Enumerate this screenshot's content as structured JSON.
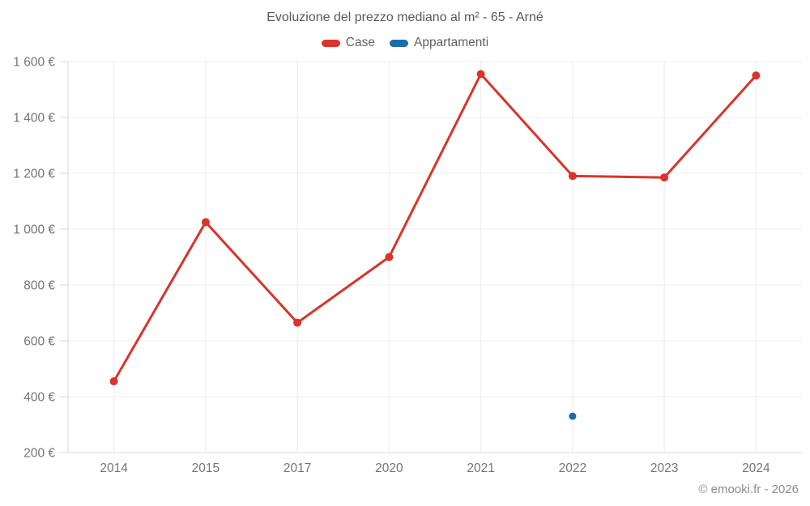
{
  "title": "Evoluzione del prezzo mediano al m² - 65 - Arné",
  "footer": "© emooki.fr - 2026",
  "legend": [
    {
      "label": "Case",
      "color": "#d9342b"
    },
    {
      "label": "Appartamenti",
      "color": "#1c6ca8"
    }
  ],
  "colors": {
    "case_red": "#d9342b",
    "appartamenti_blue": "#1c6ca8",
    "gridline": "#ececec",
    "axis_line": "#d9d9d9",
    "tick_label": "#757575",
    "title_text": "#595959",
    "footer_text": "#8c8c8c"
  },
  "chart_data": {
    "type": "line",
    "title": "Evoluzione del prezzo mediano al m² - 65 - Arné",
    "categories": [
      "2014",
      "2015",
      "2017",
      "2020",
      "2021",
      "2022",
      "2023",
      "2024"
    ],
    "series": [
      {
        "name": "Case",
        "color": "#d9342b",
        "values": [
          455,
          1025,
          665,
          900,
          1555,
          1190,
          1185,
          1550
        ]
      },
      {
        "name": "Appartamenti",
        "color": "#1c6ca8",
        "values": [
          null,
          null,
          null,
          null,
          null,
          330,
          null,
          null
        ]
      }
    ],
    "xlabel": "",
    "ylabel": "",
    "ylim": [
      200,
      1600
    ],
    "ytick_step": 200,
    "ytick_labels": [
      "200 €",
      "400 €",
      "600 €",
      "800 €",
      "1 000 €",
      "1 200 €",
      "1 400 €",
      "1 600 €"
    ],
    "grid": true,
    "legend_position": "top"
  }
}
